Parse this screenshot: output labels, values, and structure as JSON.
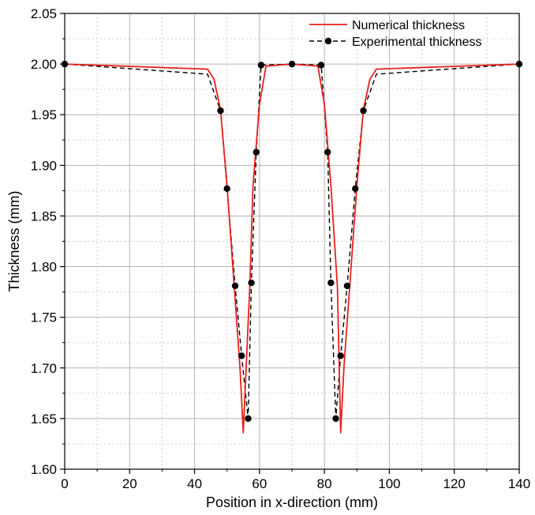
{
  "chart_data": {
    "type": "line",
    "title": "",
    "xlabel": "Position in x-direction (mm)",
    "ylabel": "Thickness (mm)",
    "xlim": [
      0,
      140
    ],
    "ylim": [
      1.6,
      2.05
    ],
    "xticks": [
      0,
      20,
      40,
      60,
      80,
      100,
      120,
      140
    ],
    "xtick_labels": [
      "0",
      "20",
      "40",
      "60",
      "80",
      "100",
      "120",
      "140"
    ],
    "yticks": [
      1.6,
      1.65,
      1.7,
      1.75,
      1.8,
      1.85,
      1.9,
      1.95,
      2.0,
      2.05
    ],
    "ytick_labels": [
      "1.60",
      "1.65",
      "1.70",
      "1.75",
      "1.80",
      "1.85",
      "1.90",
      "1.95",
      "2.00",
      "2.05"
    ],
    "grid": true,
    "legend_position": "top-right",
    "series": [
      {
        "name": "Numerical thickness",
        "color": "#e8211e",
        "style": "solid",
        "markers": false,
        "x": [
          0,
          44,
          46,
          48,
          50,
          52,
          54,
          55,
          57,
          58,
          60,
          62,
          70,
          78,
          80,
          82,
          84,
          85,
          86,
          88,
          90,
          92,
          94,
          96,
          140
        ],
        "y": [
          2.0,
          1.995,
          1.985,
          1.955,
          1.88,
          1.79,
          1.7,
          1.636,
          1.78,
          1.88,
          1.96,
          1.998,
          2.0,
          1.998,
          1.96,
          1.88,
          1.78,
          1.636,
          1.7,
          1.79,
          1.88,
          1.955,
          1.985,
          1.995,
          2.0
        ]
      },
      {
        "name": "Experimental thickness",
        "color": "#000000",
        "style": "dashed",
        "markers": true,
        "x": [
          0,
          44,
          48,
          50,
          52.5,
          54.5,
          56.5,
          57.5,
          59,
          60.5,
          70,
          79,
          81,
          82,
          83.5,
          85,
          87,
          89.5,
          92,
          96,
          140
        ],
        "y": [
          2.0,
          1.99,
          1.954,
          1.877,
          1.781,
          1.712,
          1.65,
          1.784,
          1.913,
          1.999,
          2.0,
          1.999,
          1.913,
          1.784,
          1.65,
          1.712,
          1.781,
          1.877,
          1.954,
          1.99,
          2.0
        ],
        "marker_x": [
          0,
          48,
          50,
          52.5,
          54.5,
          56.5,
          57.5,
          59,
          60.5,
          70,
          79,
          81,
          82,
          83.5,
          85,
          87,
          89.5,
          92,
          140
        ],
        "marker_y": [
          2.0,
          1.954,
          1.877,
          1.781,
          1.712,
          1.65,
          1.784,
          1.913,
          1.999,
          2.0,
          1.999,
          1.913,
          1.784,
          1.65,
          1.712,
          1.781,
          1.877,
          1.954,
          2.0
        ]
      }
    ]
  }
}
